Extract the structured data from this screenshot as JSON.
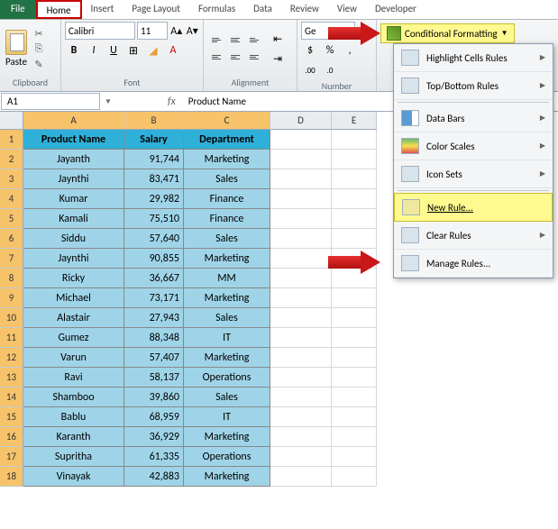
{
  "tabs": {
    "file": "File",
    "home": "Home",
    "insert": "Insert",
    "page_layout": "Page Layout",
    "formulas": "Formulas",
    "data": "Data",
    "review": "Review",
    "view": "View",
    "developer": "Developer"
  },
  "ribbon": {
    "paste": "Paste",
    "clipboard_label": "Clipboard",
    "font_label": "Font",
    "alignment_label": "Alignment",
    "number_label": "Number",
    "font_name": "Calibri",
    "font_size": "11",
    "general": "Ge",
    "cond_fmt": "Conditional Formatting"
  },
  "cellref": {
    "name": "A1",
    "fx": "fx",
    "formula": "Product Name"
  },
  "cols": [
    "A",
    "B",
    "C",
    "D",
    "E"
  ],
  "headers": {
    "a": "Product Name",
    "b": "Salary",
    "c": "Department"
  },
  "rows": [
    {
      "n": "1"
    },
    {
      "n": "2",
      "a": "Jayanth",
      "b": "91,744",
      "c": "Marketing"
    },
    {
      "n": "3",
      "a": "Jaynthi",
      "b": "83,471",
      "c": "Sales"
    },
    {
      "n": "4",
      "a": "Kumar",
      "b": "29,982",
      "c": "Finance"
    },
    {
      "n": "5",
      "a": "Kamali",
      "b": "75,510",
      "c": "Finance"
    },
    {
      "n": "6",
      "a": "Siddu",
      "b": "57,640",
      "c": "Sales"
    },
    {
      "n": "7",
      "a": "Jaynthi",
      "b": "90,855",
      "c": "Marketing"
    },
    {
      "n": "8",
      "a": "Ricky",
      "b": "36,667",
      "c": "MM"
    },
    {
      "n": "9",
      "a": "Michael",
      "b": "73,171",
      "c": "Marketing"
    },
    {
      "n": "10",
      "a": "Alastair",
      "b": "27,943",
      "c": "Sales"
    },
    {
      "n": "11",
      "a": "Gumez",
      "b": "88,348",
      "c": "IT"
    },
    {
      "n": "12",
      "a": "Varun",
      "b": "57,407",
      "c": "Marketing"
    },
    {
      "n": "13",
      "a": "Ravi",
      "b": "58,137",
      "c": "Operations"
    },
    {
      "n": "14",
      "a": "Shamboo",
      "b": "39,860",
      "c": "Sales"
    },
    {
      "n": "15",
      "a": "Bablu",
      "b": "68,959",
      "c": "IT"
    },
    {
      "n": "16",
      "a": "Karanth",
      "b": "36,929",
      "c": "Marketing"
    },
    {
      "n": "17",
      "a": "Supritha",
      "b": "61,335",
      "c": "Operations"
    },
    {
      "n": "18",
      "a": "Vinayak",
      "b": "42,883",
      "c": "Marketing"
    }
  ],
  "dropdown": {
    "highlight": "Highlight Cells Rules",
    "topbottom": "Top/Bottom Rules",
    "databars": "Data Bars",
    "colorscales": "Color Scales",
    "iconsets": "Icon Sets",
    "newrule": "New Rule...",
    "clearrules": "Clear Rules",
    "managerules": "Manage Rules..."
  }
}
